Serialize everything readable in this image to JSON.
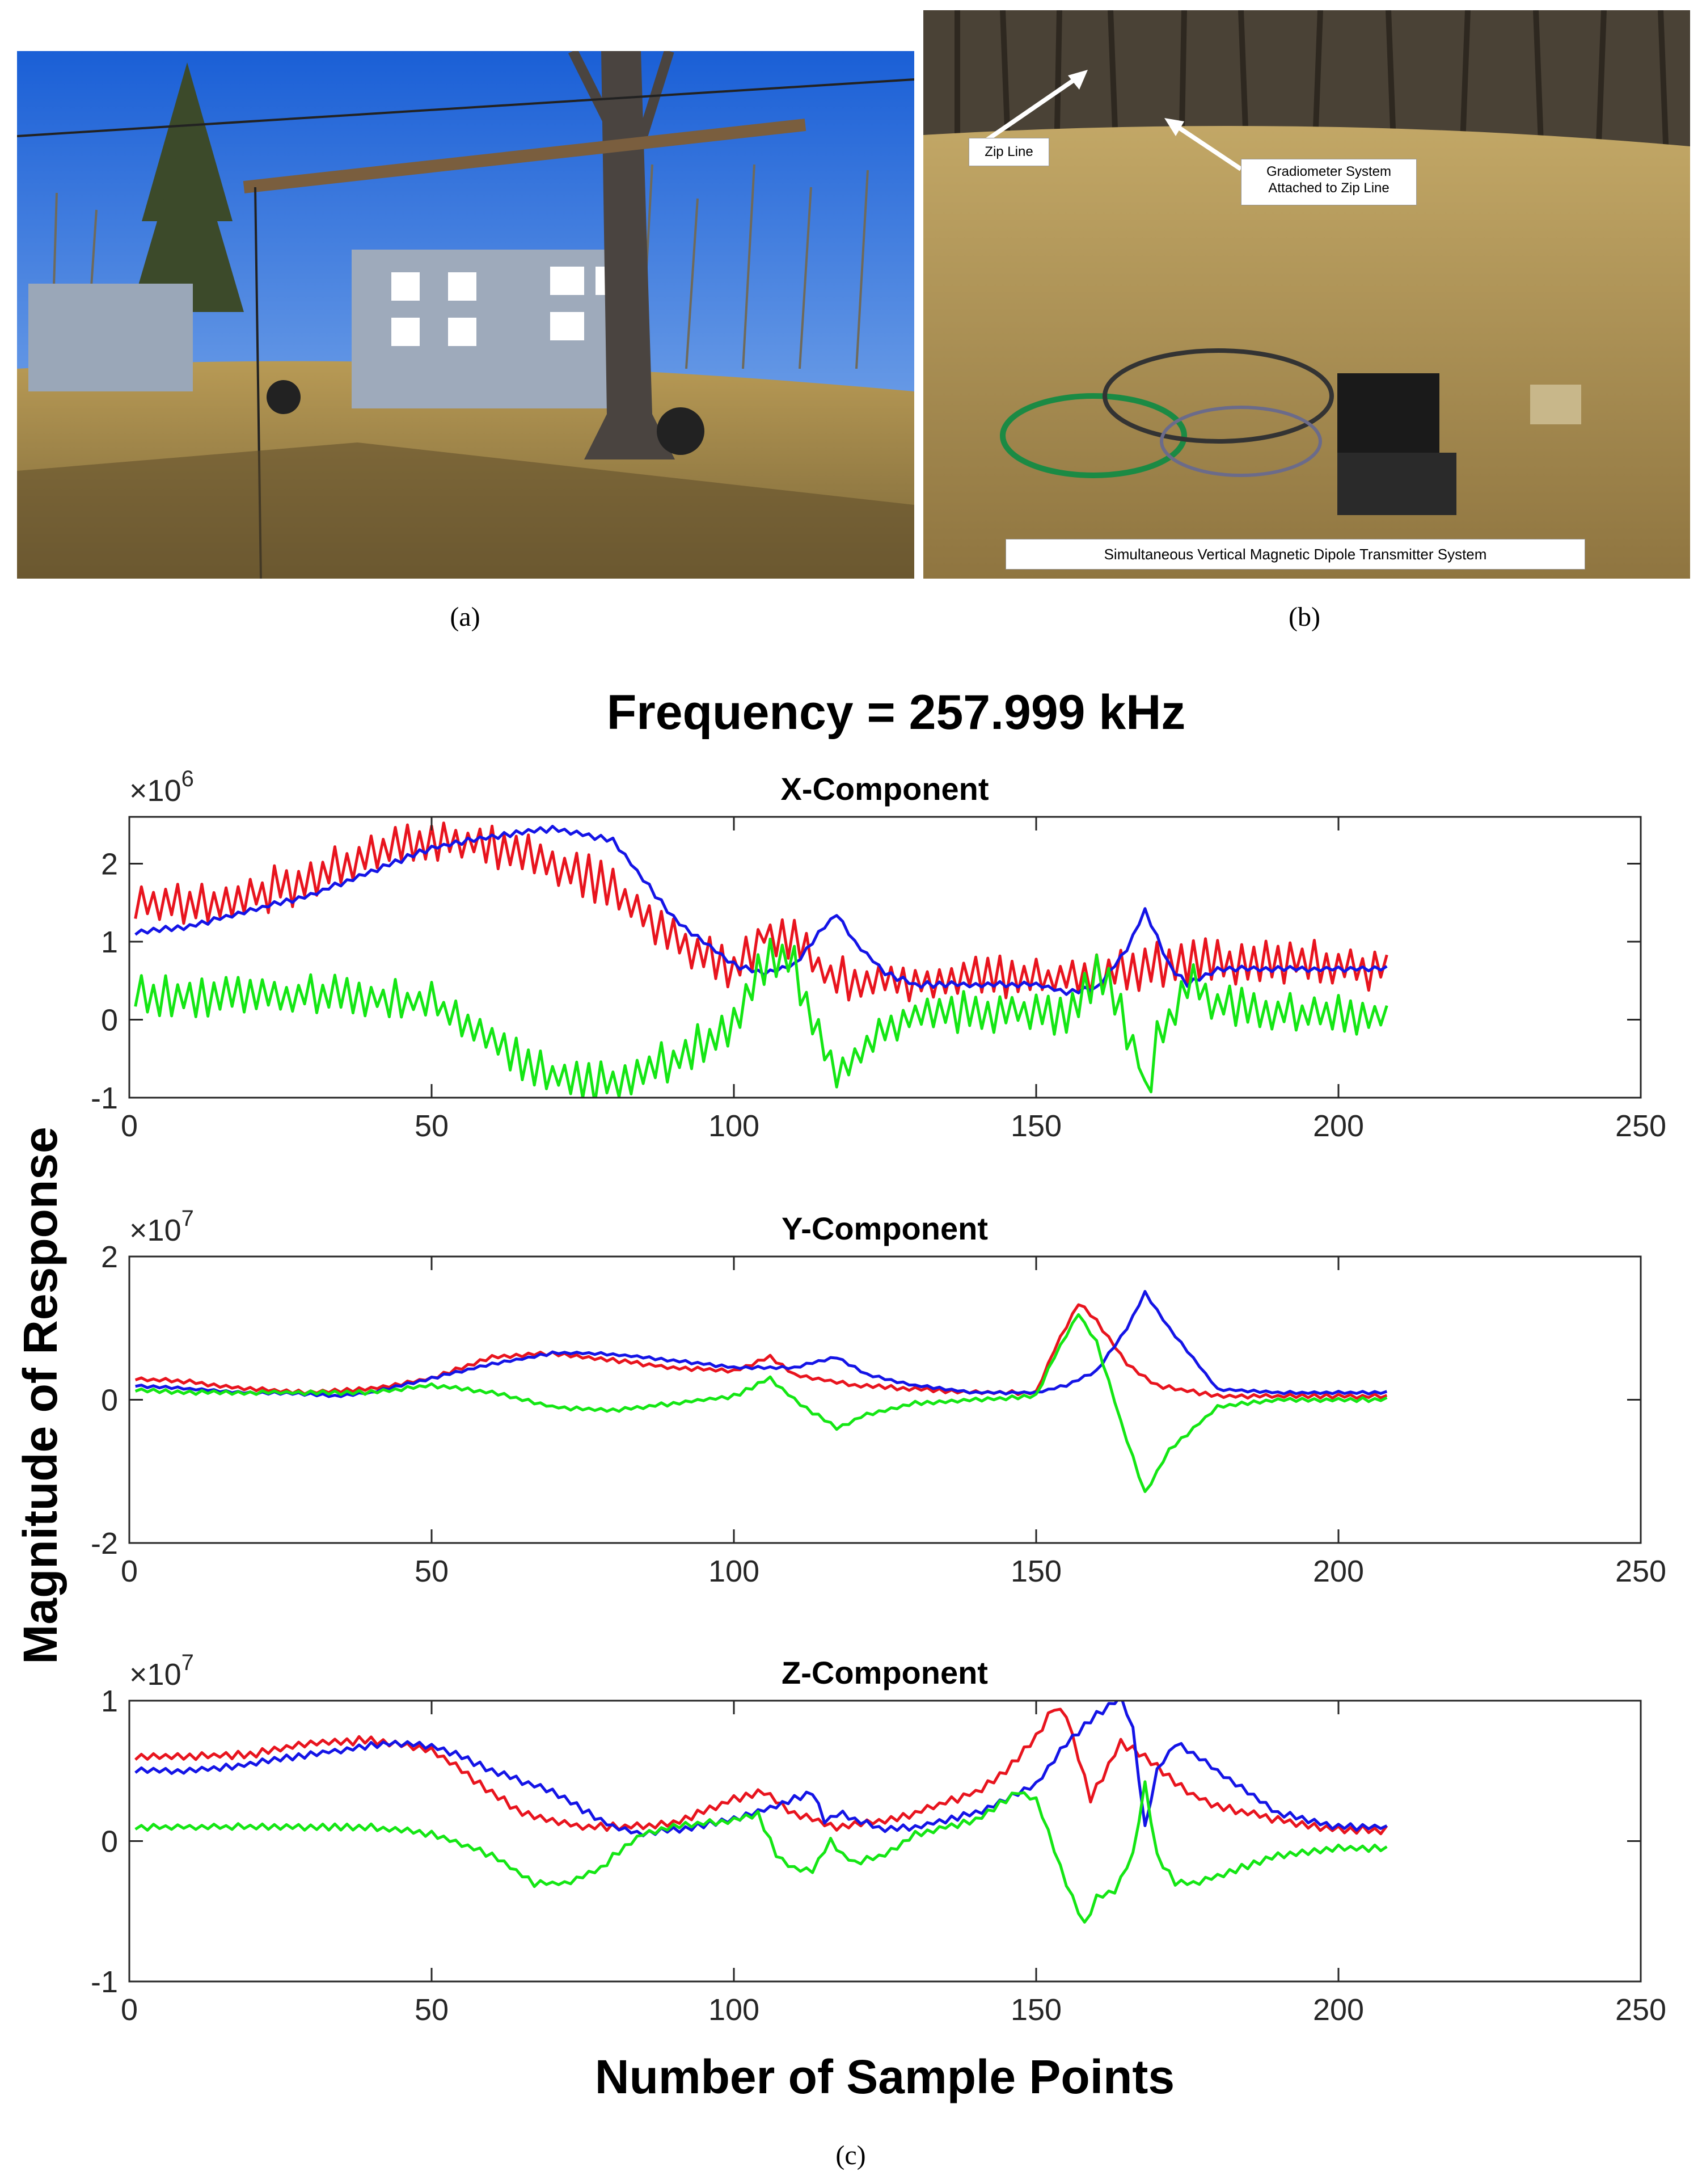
{
  "figure": {
    "panel_a_caption": "(a)",
    "panel_b_caption": "(b)",
    "panel_c_caption": "(c)",
    "photo_b_labels": {
      "zip_line": "Zip Line",
      "gradiometer_line1": "Gradiometer System",
      "gradiometer_line2": "Attached to Zip Line",
      "transmitter": "Simultaneous Vertical Magnetic Dipole Transmitter System"
    }
  },
  "chart_data": {
    "type": "line",
    "title": "Frequency = 257.999 kHz",
    "xlabel": "Number of Sample Points",
    "ylabel": "Magnitude of Response",
    "x_ticks": [
      0,
      50,
      100,
      150,
      200,
      250
    ],
    "xlim": [
      0,
      250
    ],
    "colors": {
      "red": "#e8141e",
      "blue": "#1414e6",
      "green": "#14e614"
    },
    "subplots": [
      {
        "title": "X-Component",
        "exponent_label": "×10",
        "exponent": "6",
        "ylim": [
          -1,
          2.6
        ],
        "y_ticks": [
          -1,
          0,
          1,
          2
        ],
        "y_tick_labels": [
          "-1",
          "0",
          "1",
          "2"
        ],
        "series": [
          {
            "name": "red",
            "color": "#e8141e",
            "x": [
              0,
              10,
              20,
              30,
              40,
              50,
              60,
              70,
              80,
              90,
              100,
              105,
              110,
              115,
              120,
              130,
              140,
              150,
              160,
              170,
              180,
              190,
              200,
              208
            ],
            "y": [
              1.5,
              1.45,
              1.6,
              1.8,
              2.1,
              2.3,
              2.25,
              2.0,
              1.7,
              1.0,
              0.6,
              1.1,
              1.0,
              0.6,
              0.5,
              0.5,
              0.55,
              0.5,
              0.55,
              0.7,
              0.75,
              0.75,
              0.7,
              0.65
            ],
            "noise": 0.3
          },
          {
            "name": "blue",
            "color": "#1414e6",
            "x": [
              0,
              10,
              20,
              30,
              40,
              50,
              60,
              70,
              80,
              90,
              100,
              105,
              110,
              115,
              117,
              120,
              125,
              130,
              140,
              150,
              155,
              160,
              165,
              168,
              172,
              175,
              180,
              190,
              200,
              208
            ],
            "y": [
              1.1,
              1.2,
              1.4,
              1.6,
              1.9,
              2.2,
              2.35,
              2.45,
              2.3,
              1.3,
              0.7,
              0.6,
              0.7,
              1.2,
              1.35,
              1.0,
              0.6,
              0.45,
              0.45,
              0.45,
              0.35,
              0.4,
              0.9,
              1.4,
              0.7,
              0.45,
              0.65,
              0.65,
              0.65,
              0.65
            ],
            "noise": 0.04
          },
          {
            "name": "green",
            "color": "#14e614",
            "x": [
              0,
              10,
              20,
              30,
              40,
              50,
              55,
              60,
              65,
              70,
              75,
              80,
              90,
              100,
              103,
              106,
              110,
              113,
              117,
              120,
              125,
              130,
              140,
              150,
              155,
              160,
              163,
              167,
              168,
              170,
              175,
              180,
              190,
              200,
              208
            ],
            "y": [
              0.35,
              0.3,
              0.3,
              0.3,
              0.3,
              0.2,
              0.0,
              -0.3,
              -0.5,
              -0.7,
              -0.8,
              -0.8,
              -0.5,
              -0.1,
              0.5,
              0.8,
              0.7,
              0.0,
              -0.7,
              -0.5,
              -0.1,
              0.05,
              0.1,
              0.1,
              0.0,
              0.6,
              0.3,
              -0.5,
              -1.0,
              -0.3,
              0.5,
              0.2,
              0.1,
              0.05,
              0.05
            ],
            "noise": 0.28
          }
        ]
      },
      {
        "title": "Y-Component",
        "exponent_label": "×10",
        "exponent": "7",
        "ylim": [
          -2,
          2
        ],
        "y_ticks": [
          -2,
          0,
          2
        ],
        "y_tick_labels": [
          "-2",
          "0",
          "2"
        ],
        "series": [
          {
            "name": "red",
            "color": "#e8141e",
            "x": [
              0,
              10,
              20,
              30,
              40,
              50,
              60,
              70,
              80,
              90,
              100,
              106,
              110,
              120,
              130,
              140,
              150,
              153,
              157,
              160,
              165,
              170,
              180,
              190,
              200,
              208
            ],
            "y": [
              0.3,
              0.25,
              0.15,
              0.1,
              0.15,
              0.3,
              0.6,
              0.65,
              0.55,
              0.45,
              0.4,
              0.6,
              0.35,
              0.2,
              0.15,
              0.1,
              0.1,
              0.7,
              1.35,
              1.1,
              0.5,
              0.2,
              0.05,
              0.05,
              0.05,
              0.05
            ],
            "noise": 0.03
          },
          {
            "name": "blue",
            "color": "#1414e6",
            "x": [
              0,
              10,
              20,
              30,
              35,
              40,
              50,
              60,
              70,
              78,
              90,
              100,
              110,
              117,
              122,
              130,
              140,
              150,
              155,
              160,
              165,
              168,
              172,
              180,
              190,
              200,
              208
            ],
            "y": [
              0.2,
              0.15,
              0.1,
              0.08,
              0.05,
              0.1,
              0.3,
              0.5,
              0.65,
              0.65,
              0.55,
              0.45,
              0.45,
              0.6,
              0.35,
              0.2,
              0.1,
              0.1,
              0.2,
              0.4,
              1.0,
              1.5,
              1.0,
              0.15,
              0.1,
              0.1,
              0.1
            ],
            "noise": 0.02
          },
          {
            "name": "green",
            "color": "#14e614",
            "x": [
              0,
              10,
              20,
              30,
              40,
              50,
              60,
              70,
              80,
              90,
              100,
              106,
              110,
              117,
              122,
              130,
              140,
              150,
              153,
              157,
              160,
              164,
              168,
              172,
              180,
              190,
              200,
              208
            ],
            "y": [
              0.15,
              0.1,
              0.1,
              0.1,
              0.1,
              0.2,
              0.1,
              -0.1,
              -0.15,
              -0.05,
              0.05,
              0.3,
              0.0,
              -0.4,
              -0.2,
              -0.05,
              0.0,
              0.05,
              0.6,
              1.2,
              0.8,
              -0.3,
              -1.3,
              -0.7,
              -0.1,
              0.0,
              0.0,
              0.0
            ],
            "noise": 0.03
          }
        ]
      },
      {
        "title": "Z-Component",
        "exponent_label": "×10",
        "exponent": "7",
        "ylim": [
          -1,
          1
        ],
        "y_ticks": [
          -1,
          0,
          1
        ],
        "y_tick_labels": [
          "-1",
          "0",
          "1"
        ],
        "series": [
          {
            "name": "red",
            "color": "#e8141e",
            "x": [
              0,
              10,
              20,
              30,
              40,
              50,
              55,
              60,
              65,
              70,
              75,
              80,
              90,
              100,
              105,
              110,
              117,
              125,
              130,
              140,
              145,
              150,
              153,
              155,
              159,
              164,
              168,
              175,
              180,
              190,
              200,
              208
            ],
            "y": [
              0.6,
              0.6,
              0.62,
              0.7,
              0.72,
              0.65,
              0.5,
              0.35,
              0.2,
              0.15,
              0.1,
              0.1,
              0.12,
              0.3,
              0.35,
              0.2,
              0.1,
              0.15,
              0.2,
              0.35,
              0.5,
              0.75,
              0.95,
              0.9,
              0.3,
              0.7,
              0.6,
              0.35,
              0.25,
              0.15,
              0.08,
              0.08
            ],
            "noise": 0.03
          },
          {
            "name": "blue",
            "color": "#1414e6",
            "x": [
              0,
              10,
              20,
              30,
              40,
              45,
              50,
              55,
              60,
              70,
              80,
              85,
              90,
              100,
              110,
              113,
              115,
              118,
              120,
              125,
              130,
              140,
              150,
              155,
              160,
              164,
              166,
              168,
              170,
              173,
              175,
              180,
              190,
              200,
              208
            ],
            "y": [
              0.5,
              0.5,
              0.55,
              0.62,
              0.68,
              0.7,
              0.68,
              0.6,
              0.5,
              0.35,
              0.1,
              0.05,
              0.08,
              0.15,
              0.3,
              0.35,
              0.15,
              0.2,
              0.15,
              0.08,
              0.1,
              0.2,
              0.4,
              0.7,
              0.9,
              1.02,
              0.8,
              0.1,
              0.5,
              0.7,
              0.65,
              0.5,
              0.2,
              0.1,
              0.1
            ],
            "noise": 0.025
          },
          {
            "name": "green",
            "color": "#14e614",
            "x": [
              0,
              10,
              20,
              30,
              40,
              50,
              60,
              67,
              72,
              78,
              80,
              85,
              90,
              100,
              104,
              107,
              110,
              113,
              116,
              118,
              120,
              125,
              130,
              140,
              147,
              150,
              155,
              158,
              160,
              163,
              166,
              168,
              170,
              173,
              176,
              180,
              190,
              200,
              208
            ],
            "y": [
              0.1,
              0.1,
              0.1,
              0.1,
              0.1,
              0.05,
              -0.1,
              -0.3,
              -0.3,
              -0.2,
              -0.1,
              0.05,
              0.1,
              0.15,
              0.2,
              -0.1,
              -0.2,
              -0.2,
              0.0,
              -0.1,
              -0.15,
              -0.1,
              0.05,
              0.15,
              0.35,
              0.3,
              -0.3,
              -0.6,
              -0.4,
              -0.35,
              -0.1,
              0.4,
              -0.1,
              -0.3,
              -0.3,
              -0.25,
              -0.1,
              -0.05,
              -0.05
            ],
            "noise": 0.025
          }
        ]
      }
    ]
  }
}
